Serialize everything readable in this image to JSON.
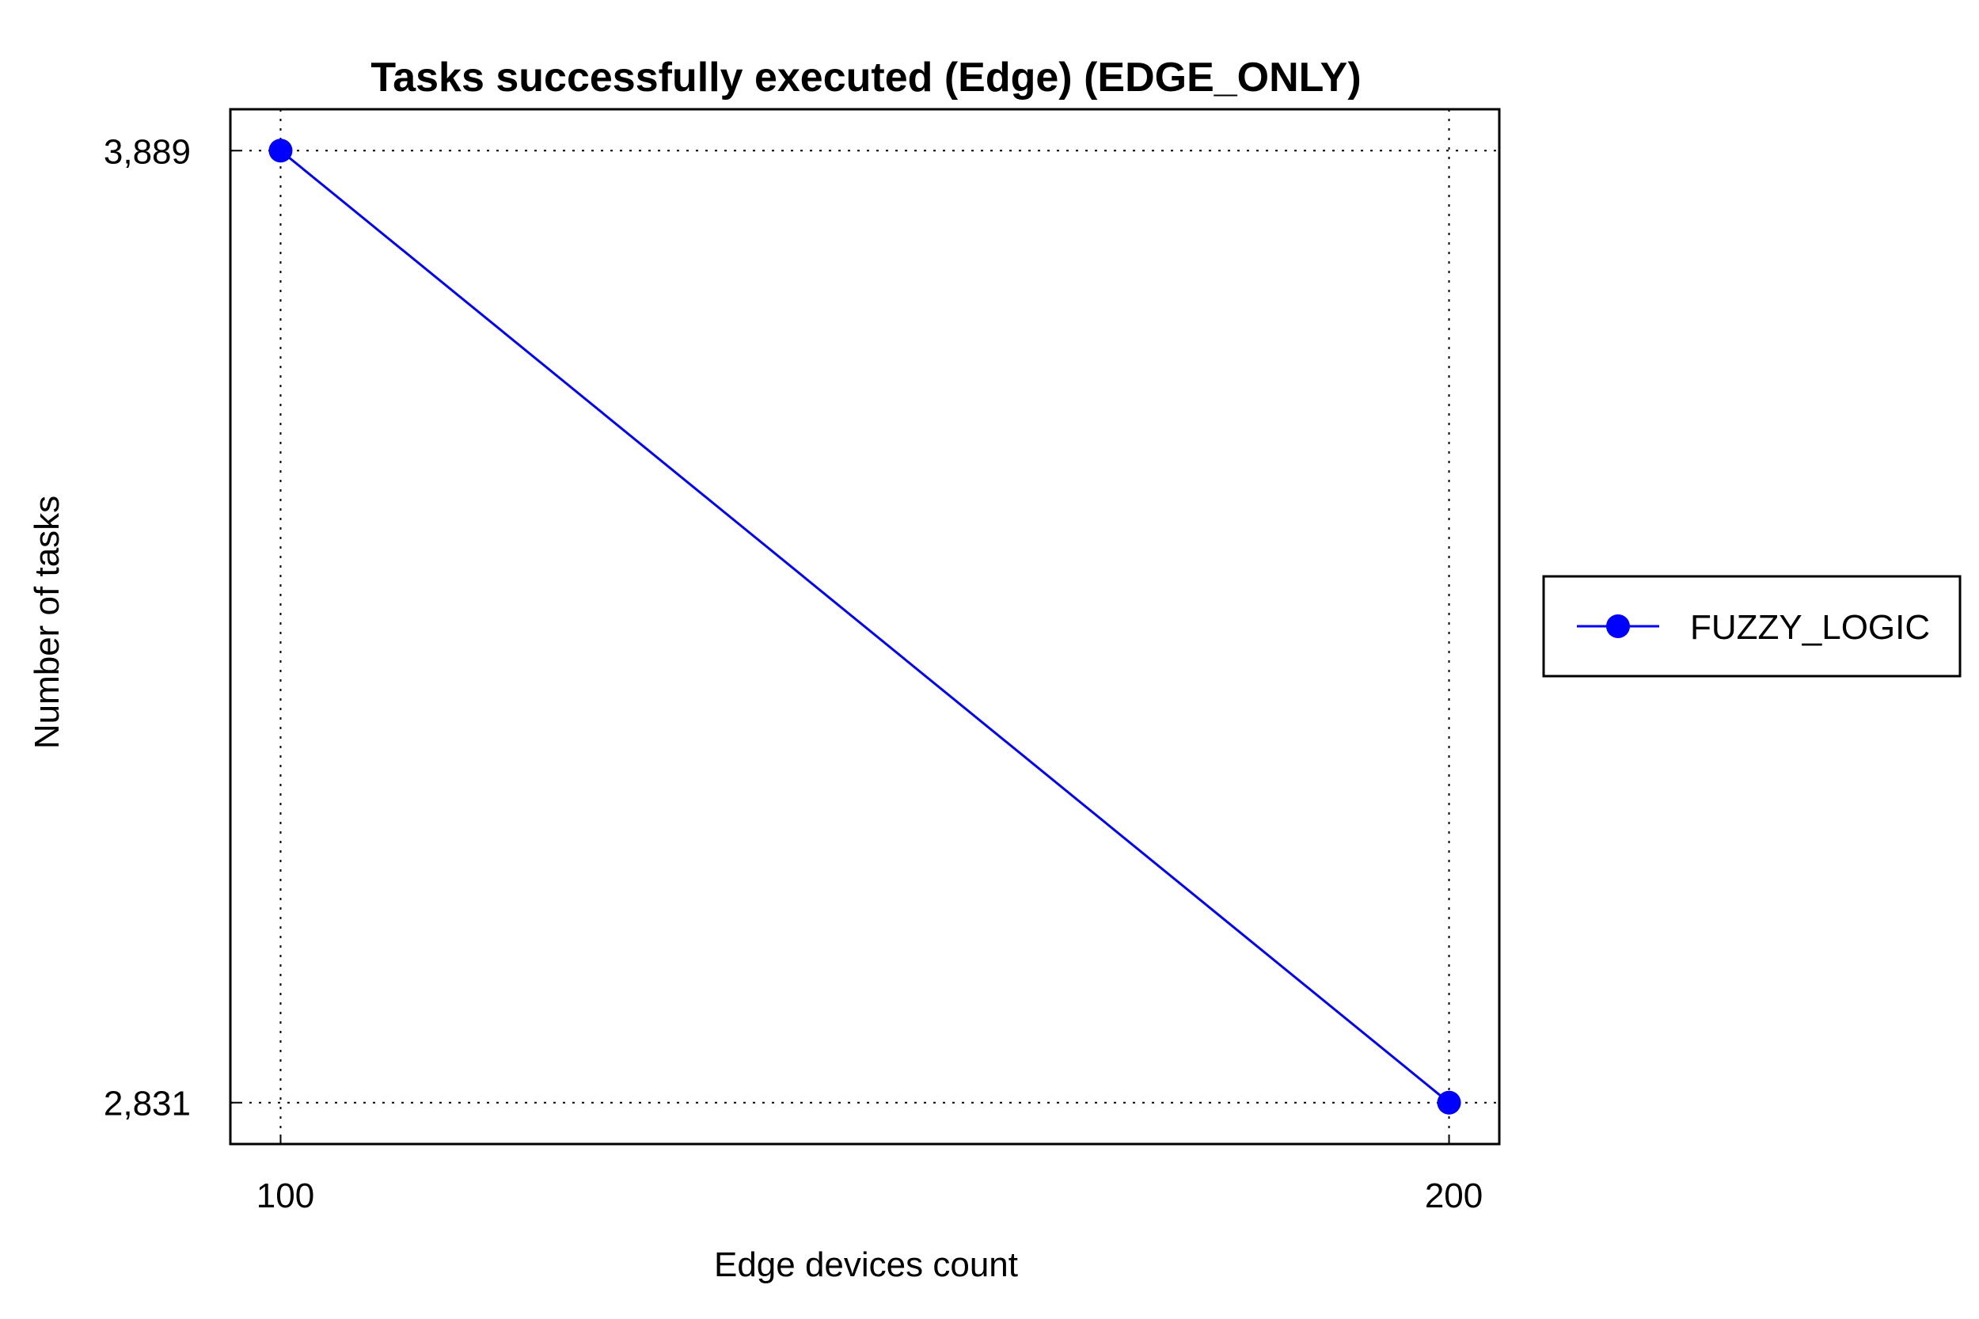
{
  "chart_data": {
    "type": "line",
    "title": "Tasks successfully executed (Edge) (EDGE_ONLY)",
    "xlabel": "Edge devices count",
    "ylabel": "Number of tasks",
    "x": [
      100,
      200
    ],
    "x_tick_labels": [
      "100",
      "200"
    ],
    "y_tick_values": [
      3889,
      2831
    ],
    "y_tick_labels": [
      "3,889",
      "2,831"
    ],
    "series": [
      {
        "name": "FUZZY_LOGIC",
        "values": [
          3889,
          2831
        ],
        "color": "#0000ff",
        "marker": "circle"
      }
    ],
    "xlim": [
      95.7,
      204.3
    ],
    "ylim": [
      2785,
      3935
    ],
    "grid": true,
    "grid_style": "dotted",
    "legend_position": "right"
  }
}
